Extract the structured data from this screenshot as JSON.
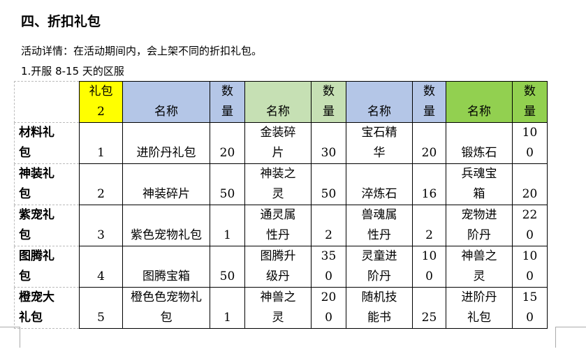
{
  "heading": "四、折扣礼包",
  "detail": "活动详情：在活动期间内，会上架不同的折扣礼包。",
  "subheading": "1.开服 8-15 天的区服",
  "colors": {
    "yellow": "#ffff00",
    "blue": "#b4c6e7",
    "lightgreen": "#c6e0b4",
    "green": "#92d050"
  },
  "table": {
    "header": [
      "",
      "礼包2",
      "名称",
      "数量",
      "名称",
      "数量",
      "名称",
      "数量",
      "名称",
      "数量"
    ],
    "rows": [
      [
        "材料礼包",
        "1",
        "进阶丹礼包",
        "20",
        "金装碎片",
        "30",
        "宝石精华",
        "20",
        "锻炼石",
        "100"
      ],
      [
        "神装礼包",
        "2",
        "神装碎片",
        "50",
        "神装之灵",
        "50",
        "淬炼石",
        "16",
        "兵魂宝箱",
        "20"
      ],
      [
        "紫宠礼包",
        "3",
        "紫色宠物礼包",
        "1",
        "通灵属性丹",
        "2",
        "兽魂属性丹",
        "2",
        "宠物进阶丹",
        "220"
      ],
      [
        "图腾礼包",
        "4",
        "图腾宝箱",
        "50",
        "图腾升级丹",
        "350",
        "灵童进阶丹",
        "100",
        "神兽之灵",
        "100"
      ],
      [
        "橙宠大礼包",
        "5",
        "橙色色宠物礼包",
        "1",
        "神兽之灵",
        "200",
        "随机技能书",
        "25",
        "进阶丹礼包",
        "150"
      ]
    ]
  }
}
